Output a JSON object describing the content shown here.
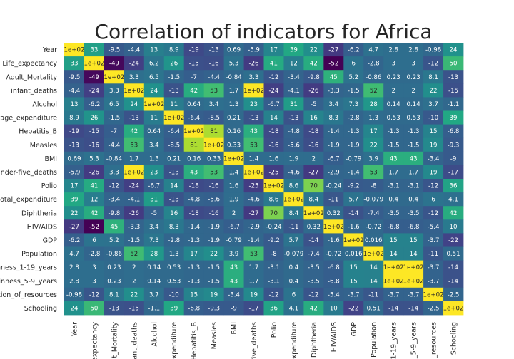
{
  "chart_data": {
    "type": "heatmap",
    "title": "Correlation of indicators for Africa",
    "labels": [
      "Year",
      "Life_expectancy",
      "Adult_Mortality",
      "infant_deaths",
      "Alcohol",
      "percentage_expenditure",
      "Hepatitis_B",
      "Measles",
      "BMI",
      "under-five_deaths",
      "Polio",
      "Total_expenditure",
      "Diphtheria",
      "HIV/AIDS",
      "GDP",
      "Population",
      "thinness_1-19_years",
      "thinness_5-9_years",
      "Income_composition_of_resources",
      "Schooling"
    ],
    "x_tick_labels": [
      "Year",
      "_expectancy",
      "t_Mortality",
      "ant_deaths",
      "Alcohol",
      "expenditure",
      "Hepatitis_B",
      "Measles",
      "BMI",
      "five_deaths",
      "Polio",
      "expenditure",
      "Diphtheria",
      "HIV/AIDS",
      "GDP",
      "Population",
      "1-19_years",
      "_5-9_years",
      "_resources",
      "Schooling"
    ],
    "y_tick_labels": [
      "Year",
      "Life_expectancy",
      "Adult_Mortality",
      "infant_deaths",
      "Alcohol",
      "ntage_expenditure",
      "Hepatitis_B",
      "Measles",
      "BMI",
      "under-five_deaths",
      "Polio",
      "Total_expenditure",
      "Diphtheria",
      "HIV/AIDS",
      "GDP",
      "Population",
      "hinness_1-19_years",
      "thinness_5-9_years",
      "tion_of_resources",
      "Schooling"
    ],
    "annotations": [
      [
        "1e+02",
        "33",
        "-9.5",
        "-4.4",
        "13",
        "8.9",
        "-19",
        "-13",
        "0.69",
        "-5.9",
        "17",
        "39",
        "22",
        "-27",
        "-6.2",
        "4.7",
        "2.8",
        "2.8",
        "-0.98",
        "24"
      ],
      [
        "33",
        "1e+02",
        "-49",
        "-24",
        "6.2",
        "26",
        "-15",
        "-16",
        "5.3",
        "-26",
        "41",
        "12",
        "42",
        "-52",
        "6",
        "-2.8",
        "3",
        "3",
        "-12",
        "50"
      ],
      [
        "-9.5",
        "-49",
        "1e+02",
        "3.3",
        "6.5",
        "-1.5",
        "-7",
        "-4.4",
        "-0.84",
        "3.3",
        "-12",
        "-3.4",
        "-9.8",
        "45",
        "5.2",
        "-0.86",
        "0.23",
        "0.23",
        "8.1",
        "-13"
      ],
      [
        "-4.4",
        "-24",
        "3.3",
        "1e+02",
        "24",
        "-13",
        "42",
        "53",
        "1.7",
        "1e+02",
        "-24",
        "-4.1",
        "-26",
        "-3.3",
        "-1.5",
        "52",
        "2",
        "2",
        "22",
        "-15"
      ],
      [
        "13",
        "-6.2",
        "6.5",
        "24",
        "1e+02",
        "11",
        "0.64",
        "3.4",
        "1.3",
        "23",
        "-6.7",
        "31",
        "-5",
        "3.4",
        "7.3",
        "28",
        "0.14",
        "0.14",
        "3.7",
        "-1.1"
      ],
      [
        "8.9",
        "26",
        "-1.5",
        "-13",
        "11",
        "1e+02",
        "-6.4",
        "-8.5",
        "0.21",
        "-13",
        "14",
        "-13",
        "16",
        "8.3",
        "-2.8",
        "1.3",
        "0.53",
        "0.53",
        "-10",
        "39"
      ],
      [
        "-19",
        "-15",
        "-7",
        "42",
        "0.64",
        "-6.4",
        "1e+02",
        "81",
        "0.16",
        "43",
        "-18",
        "-4.8",
        "-18",
        "-1.4",
        "-1.3",
        "17",
        "-1.3",
        "-1.3",
        "15",
        "-6.8"
      ],
      [
        "-13",
        "-16",
        "-4.4",
        "53",
        "3.4",
        "-8.5",
        "81",
        "1e+02",
        "0.33",
        "53",
        "-16",
        "-5.6",
        "-16",
        "-1.9",
        "-1.9",
        "22",
        "-1.5",
        "-1.5",
        "19",
        "-9.3"
      ],
      [
        "0.69",
        "5.3",
        "-0.84",
        "1.7",
        "1.3",
        "0.21",
        "0.16",
        "0.33",
        "1e+02",
        "1.4",
        "1.6",
        "1.9",
        "2",
        "-6.7",
        "-0.79",
        "3.9",
        "43",
        "43",
        "-3.4",
        "-9"
      ],
      [
        "-5.9",
        "-26",
        "3.3",
        "1e+02",
        "23",
        "-13",
        "43",
        "53",
        "1.4",
        "1e+02",
        "-25",
        "-4.6",
        "-27",
        "-2.9",
        "-1.4",
        "53",
        "1.7",
        "1.7",
        "19",
        "-17"
      ],
      [
        "17",
        "41",
        "-12",
        "-24",
        "-6.7",
        "14",
        "-18",
        "-16",
        "1.6",
        "-25",
        "1e+02",
        "8.6",
        "70",
        "-0.24",
        "-9.2",
        "-8",
        "-3.1",
        "-3.1",
        "-12",
        "36"
      ],
      [
        "39",
        "12",
        "-3.4",
        "-4.1",
        "31",
        "-13",
        "-4.8",
        "-5.6",
        "1.9",
        "-4.6",
        "8.6",
        "1e+02",
        "8.4",
        "-11",
        "5.7",
        "-0.079",
        "0.4",
        "0.4",
        "6",
        "4.1"
      ],
      [
        "22",
        "42",
        "-9.8",
        "-26",
        "-5",
        "16",
        "-18",
        "-16",
        "2",
        "-27",
        "70",
        "8.4",
        "1e+02",
        "0.32",
        "-14",
        "-7.4",
        "-3.5",
        "-3.5",
        "-12",
        "42"
      ],
      [
        "-27",
        "-52",
        "45",
        "-3.3",
        "3.4",
        "8.3",
        "-1.4",
        "-1.9",
        "-6.7",
        "-2.9",
        "-0.24",
        "-11",
        "0.32",
        "1e+02",
        "-1.6",
        "-0.72",
        "-6.8",
        "-6.8",
        "-5.4",
        "10"
      ],
      [
        "-6.2",
        "6",
        "5.2",
        "-1.5",
        "7.3",
        "-2.8",
        "-1.3",
        "-1.9",
        "-0.79",
        "-1.4",
        "-9.2",
        "5.7",
        "-14",
        "-1.6",
        "1e+02",
        "0.016",
        "15",
        "15",
        "-3.7",
        "-22"
      ],
      [
        "4.7",
        "-2.8",
        "-0.86",
        "52",
        "28",
        "1.3",
        "17",
        "22",
        "3.9",
        "53",
        "-8",
        "-0.079",
        "-7.4",
        "-0.72",
        "0.016",
        "1e+02",
        "14",
        "14",
        "-11",
        "0.51"
      ],
      [
        "2.8",
        "3",
        "0.23",
        "2",
        "0.14",
        "0.53",
        "-1.3",
        "-1.5",
        "43",
        "1.7",
        "-3.1",
        "0.4",
        "-3.5",
        "-6.8",
        "15",
        "14",
        "1e+02",
        "1e+02",
        "-3.7",
        "-14"
      ],
      [
        "2.8",
        "3",
        "0.23",
        "2",
        "0.14",
        "0.53",
        "-1.3",
        "-1.5",
        "43",
        "1.7",
        "-3.1",
        "0.4",
        "-3.5",
        "-6.8",
        "15",
        "14",
        "1e+02",
        "1e+02",
        "-3.7",
        "-14"
      ],
      [
        "-0.98",
        "-12",
        "8.1",
        "22",
        "3.7",
        "-10",
        "15",
        "19",
        "-3.4",
        "19",
        "-12",
        "6",
        "-12",
        "-5.4",
        "-3.7",
        "-11",
        "-3.7",
        "-3.7",
        "1e+02",
        "-2.5"
      ],
      [
        "24",
        "50",
        "-13",
        "-15",
        "-1.1",
        "39",
        "-6.8",
        "-9.3",
        "-9",
        "-17",
        "36",
        "4.1",
        "42",
        "10",
        "-22",
        "0.51",
        "-14",
        "-14",
        "-2.5",
        "1e+02"
      ]
    ],
    "colormap": "viridis",
    "vmin": -52,
    "vmax": 100,
    "grid": false
  }
}
